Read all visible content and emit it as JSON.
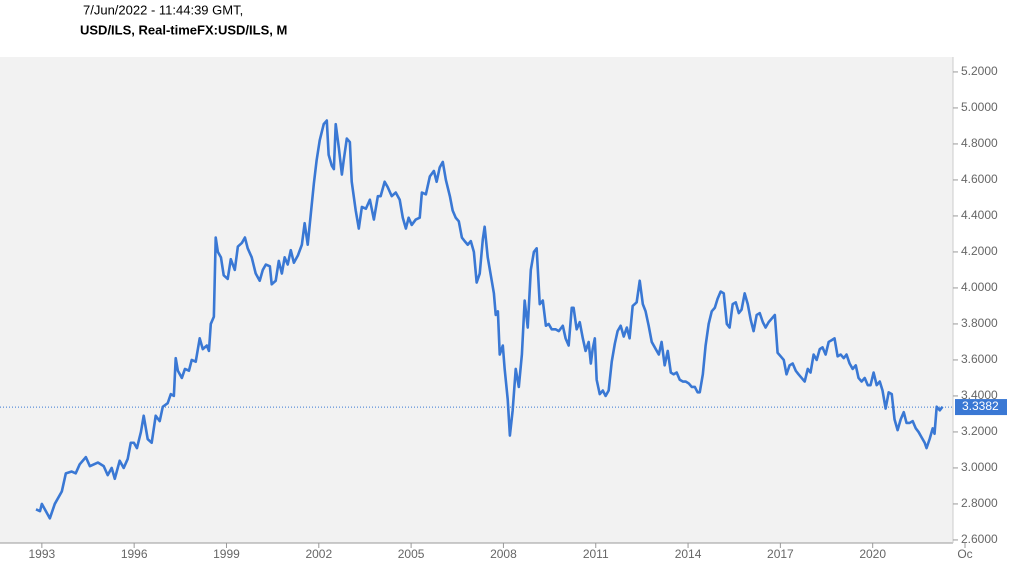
{
  "chart_data": {
    "type": "line",
    "timestamp": "7/Jun/2022 - 11:44:39 GMT,",
    "title": "USD/ILS, Real-timeFX:USD/ILS, M",
    "xlim": [
      1991.64,
      2022.61
    ],
    "ylim": [
      2.583,
      5.283
    ],
    "xticks": [
      1993,
      1996,
      1999,
      2002,
      2005,
      2008,
      2011,
      2014,
      2017,
      2020,
      {
        "value": 2023,
        "label": "Oc"
      }
    ],
    "yticks": [
      {
        "value": 2.6,
        "label": "2.6000"
      },
      {
        "value": 2.8,
        "label": "2.8000"
      },
      {
        "value": 3.0,
        "label": "3.0000"
      },
      {
        "value": 3.2,
        "label": "3.2000"
      },
      {
        "value": 3.4,
        "label": "3.4000"
      },
      {
        "value": 3.6,
        "label": "3.6000"
      },
      {
        "value": 3.8,
        "label": "3.8000"
      },
      {
        "value": 4.0,
        "label": "4.0000"
      },
      {
        "value": 4.2,
        "label": "4.2000"
      },
      {
        "value": 4.4,
        "label": "4.4000"
      },
      {
        "value": 4.6,
        "label": "4.6000"
      },
      {
        "value": 4.8,
        "label": "4.8000"
      },
      {
        "value": 5.0,
        "label": "5.0000"
      },
      {
        "value": 5.2,
        "label": "5.2000"
      }
    ],
    "last_value": 3.3382,
    "color": "#3a78d4",
    "x": [
      1992.81,
      1992.94,
      1993.0,
      1993.13,
      1993.26,
      1993.42,
      1993.65,
      1993.78,
      1993.97,
      1994.1,
      1994.23,
      1994.43,
      1994.56,
      1994.82,
      1995.01,
      1995.14,
      1995.27,
      1995.37,
      1995.53,
      1995.66,
      1995.79,
      1995.89,
      1995.99,
      1996.09,
      1996.22,
      1996.31,
      1996.44,
      1996.57,
      1996.7,
      1996.83,
      1996.93,
      1997.09,
      1997.19,
      1997.29,
      1997.35,
      1997.42,
      1997.55,
      1997.65,
      1997.78,
      1997.87,
      1998.0,
      1998.13,
      1998.23,
      1998.36,
      1998.43,
      1998.49,
      1998.59,
      1998.65,
      1998.72,
      1998.82,
      1998.91,
      1999.04,
      1999.14,
      1999.27,
      1999.37,
      1999.5,
      1999.6,
      1999.69,
      1999.82,
      1999.95,
      2000.08,
      2000.18,
      2000.28,
      2000.41,
      2000.47,
      2000.6,
      2000.7,
      2000.8,
      2000.89,
      2000.99,
      2001.09,
      2001.19,
      2001.32,
      2001.45,
      2001.54,
      2001.64,
      2001.74,
      2001.84,
      2001.93,
      2002.03,
      2002.16,
      2002.26,
      2002.32,
      2002.42,
      2002.49,
      2002.55,
      2002.65,
      2002.75,
      2002.81,
      2002.91,
      2003.01,
      2003.07,
      2003.2,
      2003.3,
      2003.4,
      2003.53,
      2003.66,
      2003.79,
      2003.92,
      2004.01,
      2004.14,
      2004.24,
      2004.37,
      2004.5,
      2004.63,
      2004.73,
      2004.83,
      2004.92,
      2005.02,
      2005.15,
      2005.28,
      2005.35,
      2005.48,
      2005.61,
      2005.74,
      2005.83,
      2005.93,
      2006.03,
      2006.13,
      2006.26,
      2006.35,
      2006.45,
      2006.55,
      2006.65,
      2006.74,
      2006.84,
      2006.94,
      2007.04,
      2007.13,
      2007.23,
      2007.33,
      2007.39,
      2007.49,
      2007.59,
      2007.69,
      2007.75,
      2007.82,
      2007.88,
      2007.98,
      2008.04,
      2008.14,
      2008.21,
      2008.3,
      2008.4,
      2008.5,
      2008.6,
      2008.69,
      2008.79,
      2008.89,
      2008.99,
      2009.08,
      2009.18,
      2009.28,
      2009.38,
      2009.47,
      2009.57,
      2009.7,
      2009.8,
      2009.93,
      2010.02,
      2010.12,
      2010.22,
      2010.28,
      2010.38,
      2010.48,
      2010.58,
      2010.67,
      2010.77,
      2010.84,
      2010.9,
      2010.97,
      2011.03,
      2011.13,
      2011.23,
      2011.32,
      2011.42,
      2011.52,
      2011.62,
      2011.71,
      2011.81,
      2011.91,
      2012.01,
      2012.1,
      2012.2,
      2012.33,
      2012.43,
      2012.53,
      2012.62,
      2012.72,
      2012.82,
      2012.95,
      2013.05,
      2013.14,
      2013.24,
      2013.34,
      2013.44,
      2013.53,
      2013.63,
      2013.73,
      2013.83,
      2013.92,
      2014.02,
      2014.12,
      2014.22,
      2014.31,
      2014.38,
      2014.48,
      2014.57,
      2014.67,
      2014.77,
      2014.87,
      2014.96,
      2015.06,
      2015.16,
      2015.26,
      2015.35,
      2015.45,
      2015.55,
      2015.65,
      2015.74,
      2015.84,
      2015.94,
      2016.04,
      2016.13,
      2016.23,
      2016.33,
      2016.43,
      2016.52,
      2016.62,
      2016.72,
      2016.82,
      2016.91,
      2017.01,
      2017.11,
      2017.2,
      2017.3,
      2017.4,
      2017.5,
      2017.59,
      2017.69,
      2017.79,
      2017.89,
      2017.98,
      2018.08,
      2018.18,
      2018.28,
      2018.37,
      2018.47,
      2018.57,
      2018.67,
      2018.76,
      2018.86,
      2018.96,
      2019.06,
      2019.15,
      2019.25,
      2019.35,
      2019.45,
      2019.54,
      2019.64,
      2019.74,
      2019.84,
      2019.93,
      2020.03,
      2020.13,
      2020.23,
      2020.32,
      2020.42,
      2020.52,
      2020.62,
      2020.71,
      2020.81,
      2020.91,
      2021.01,
      2021.1,
      2021.2,
      2021.3,
      2021.4,
      2021.49,
      2021.59,
      2021.69,
      2021.75,
      2021.85,
      2021.95,
      2022.01,
      2022.08,
      2022.18,
      2022.27
    ],
    "values": [
      2.77,
      2.76,
      2.8,
      2.76,
      2.72,
      2.8,
      2.87,
      2.97,
      2.98,
      2.97,
      3.02,
      3.06,
      3.01,
      3.03,
      3.01,
      2.96,
      3.0,
      2.94,
      3.04,
      3.0,
      3.05,
      3.14,
      3.14,
      3.11,
      3.2,
      3.29,
      3.16,
      3.14,
      3.29,
      3.26,
      3.34,
      3.36,
      3.41,
      3.4,
      3.61,
      3.54,
      3.5,
      3.55,
      3.54,
      3.6,
      3.59,
      3.72,
      3.66,
      3.68,
      3.65,
      3.8,
      3.84,
      4.28,
      4.2,
      4.17,
      4.07,
      4.05,
      4.16,
      4.1,
      4.23,
      4.25,
      4.28,
      4.22,
      4.17,
      4.08,
      4.04,
      4.1,
      4.13,
      4.12,
      4.02,
      4.04,
      4.15,
      4.08,
      4.17,
      4.13,
      4.21,
      4.14,
      4.18,
      4.24,
      4.36,
      4.24,
      4.41,
      4.58,
      4.71,
      4.82,
      4.91,
      4.93,
      4.74,
      4.68,
      4.66,
      4.91,
      4.78,
      4.63,
      4.71,
      4.83,
      4.81,
      4.59,
      4.43,
      4.33,
      4.45,
      4.44,
      4.49,
      4.38,
      4.51,
      4.51,
      4.59,
      4.56,
      4.51,
      4.53,
      4.49,
      4.39,
      4.33,
      4.39,
      4.35,
      4.38,
      4.39,
      4.53,
      4.52,
      4.62,
      4.65,
      4.59,
      4.67,
      4.7,
      4.6,
      4.51,
      4.43,
      4.39,
      4.37,
      4.28,
      4.26,
      4.24,
      4.26,
      4.2,
      4.03,
      4.08,
      4.27,
      4.34,
      4.17,
      4.07,
      3.97,
      3.85,
      3.87,
      3.63,
      3.68,
      3.55,
      3.38,
      3.18,
      3.32,
      3.55,
      3.45,
      3.63,
      3.93,
      3.78,
      4.1,
      4.2,
      4.22,
      3.91,
      3.93,
      3.79,
      3.8,
      3.77,
      3.77,
      3.76,
      3.79,
      3.72,
      3.68,
      3.89,
      3.89,
      3.77,
      3.81,
      3.72,
      3.65,
      3.7,
      3.58,
      3.66,
      3.72,
      3.49,
      3.41,
      3.43,
      3.4,
      3.43,
      3.59,
      3.69,
      3.76,
      3.79,
      3.73,
      3.78,
      3.72,
      3.9,
      3.92,
      4.04,
      3.91,
      3.87,
      3.79,
      3.7,
      3.66,
      3.63,
      3.7,
      3.57,
      3.65,
      3.53,
      3.52,
      3.53,
      3.49,
      3.48,
      3.48,
      3.47,
      3.45,
      3.45,
      3.42,
      3.42,
      3.52,
      3.68,
      3.8,
      3.87,
      3.89,
      3.94,
      3.98,
      3.97,
      3.8,
      3.78,
      3.91,
      3.92,
      3.86,
      3.88,
      3.97,
      3.91,
      3.82,
      3.76,
      3.85,
      3.86,
      3.81,
      3.78,
      3.81,
      3.83,
      3.85,
      3.64,
      3.62,
      3.6,
      3.52,
      3.57,
      3.58,
      3.54,
      3.52,
      3.5,
      3.48,
      3.55,
      3.53,
      3.63,
      3.6,
      3.66,
      3.67,
      3.63,
      3.7,
      3.71,
      3.72,
      3.62,
      3.63,
      3.61,
      3.63,
      3.58,
      3.55,
      3.57,
      3.5,
      3.48,
      3.5,
      3.46,
      3.46,
      3.53,
      3.46,
      3.48,
      3.43,
      3.33,
      3.42,
      3.41,
      3.27,
      3.21,
      3.27,
      3.31,
      3.25,
      3.25,
      3.26,
      3.22,
      3.2,
      3.17,
      3.14,
      3.11,
      3.16,
      3.22,
      3.19,
      3.34,
      3.32,
      3.34
    ]
  }
}
